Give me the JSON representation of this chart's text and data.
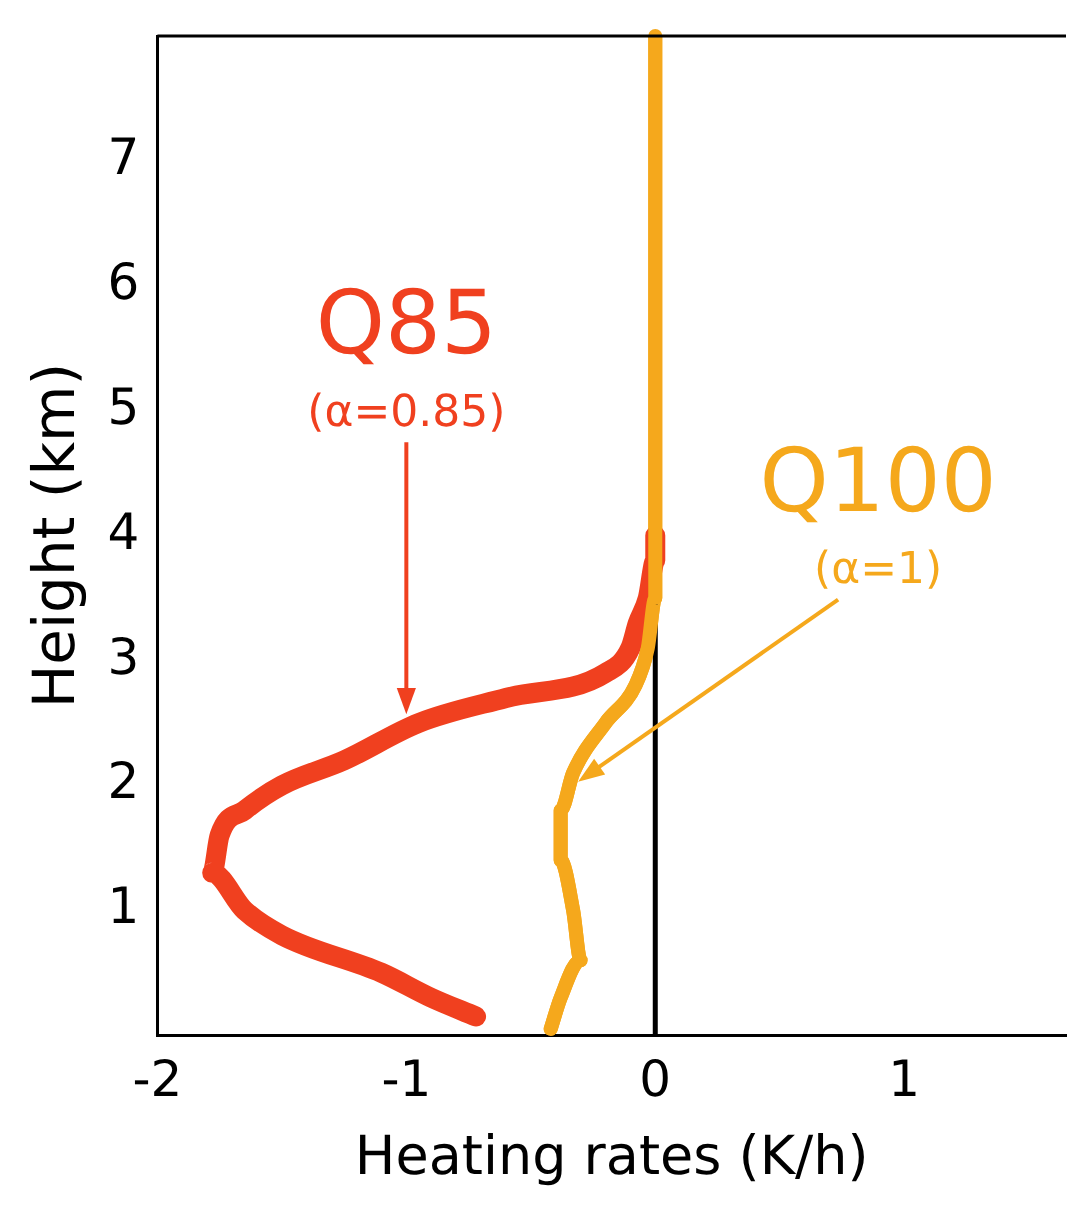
{
  "chart_data": {
    "type": "line",
    "xlabel": "Heating rates (K/h)",
    "ylabel": "Height (km)",
    "xlim": [
      -2,
      1.65
    ],
    "xticks": [
      -2,
      -1,
      0,
      1
    ],
    "ylim": [
      0,
      8
    ],
    "yticks": [
      1,
      2,
      3,
      4,
      5,
      6,
      7
    ],
    "grid": false,
    "legend": false,
    "marker": "none",
    "line_style": "solid",
    "ref_lines": [
      {
        "axis": "x",
        "value": 0,
        "color": "#000000"
      }
    ],
    "annotations": [
      {
        "text": "(α=0.85)",
        "x": -1,
        "y": 2.57
      },
      {
        "text": "(α=1)",
        "x": -0.31,
        "y": 2.03
      }
    ],
    "series": [
      {
        "name": "Q85",
        "color": "#f0401f",
        "x": [
          -0.72,
          -0.9,
          -1.1,
          -1.5,
          -1.65,
          -1.78,
          -1.75,
          -1.65,
          -1.5,
          -1.25,
          -0.95,
          -0.6,
          -0.2,
          -0.1,
          -0.07,
          -0.03,
          0,
          0
        ],
        "values": [
          0.15,
          0.3,
          0.5,
          0.8,
          1.0,
          1.3,
          1.6,
          1.8,
          2.0,
          2.2,
          2.5,
          2.7,
          2.9,
          3.1,
          3.3,
          3.5,
          3.8,
          4
        ]
      },
      {
        "name": "Q100",
        "color": "#f5a81c",
        "x": [
          -0.42,
          -0.38,
          -0.3,
          -0.33,
          -0.38,
          -0.38,
          -0.33,
          -0.2,
          -0.08,
          -0.03,
          0,
          0
        ],
        "values": [
          0.05,
          0.3,
          0.6,
          1.0,
          1.4,
          1.8,
          2.1,
          2.5,
          2.8,
          3.1,
          3.5,
          8
        ]
      }
    ]
  }
}
